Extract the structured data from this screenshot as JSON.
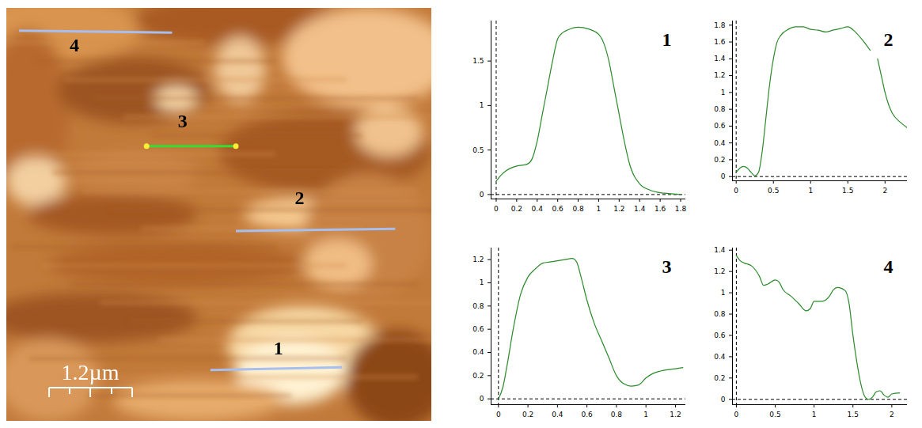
{
  "image": {
    "profile_labels": [
      "1",
      "2",
      "3",
      "4"
    ],
    "scale_bar": "1.2µm"
  },
  "chart_data": [
    {
      "type": "line",
      "title": "1",
      "color": "#2a8a2a",
      "x": [
        0,
        0.05,
        0.1,
        0.2,
        0.3,
        0.35,
        0.4,
        0.45,
        0.5,
        0.55,
        0.6,
        0.65,
        0.7,
        0.8,
        0.9,
        1.0,
        1.05,
        1.1,
        1.15,
        1.2,
        1.25,
        1.3,
        1.4,
        1.5,
        1.6,
        1.7,
        1.8
      ],
      "values": [
        0.15,
        0.22,
        0.27,
        0.32,
        0.34,
        0.4,
        0.6,
        0.9,
        1.2,
        1.5,
        1.75,
        1.82,
        1.85,
        1.88,
        1.86,
        1.8,
        1.7,
        1.5,
        1.2,
        0.9,
        0.6,
        0.35,
        0.12,
        0.05,
        0.02,
        0.01,
        0.0
      ],
      "xlim": [
        -0.05,
        1.85
      ],
      "ylim": [
        -0.05,
        1.95
      ],
      "xticks": [
        0,
        0.2,
        0.4,
        0.6,
        0.8,
        1,
        1.2,
        1.4,
        1.6,
        1.8
      ],
      "yticks": [
        0,
        0.5,
        1,
        1.5
      ]
    },
    {
      "type": "line",
      "title": "2",
      "color": "#2a8a2a",
      "x": [
        0,
        0.05,
        0.1,
        0.15,
        0.2,
        0.25,
        0.3,
        0.35,
        0.4,
        0.45,
        0.5,
        0.55,
        0.6,
        0.7,
        0.8,
        0.9,
        1.0,
        1.1,
        1.2,
        1.3,
        1.4,
        1.5,
        1.6,
        1.7,
        1.8,
        1.85,
        1.9,
        1.95,
        2.0,
        2.05,
        2.1,
        2.2,
        2.3
      ],
      "values": [
        0.05,
        0.1,
        0.12,
        0.1,
        0.05,
        0.01,
        0.05,
        0.3,
        0.7,
        1.1,
        1.4,
        1.6,
        1.68,
        1.75,
        1.78,
        1.78,
        1.75,
        1.74,
        1.72,
        1.74,
        1.76,
        1.78,
        1.72,
        1.62,
        1.5,
        null,
        1.4,
        1.2,
        1.0,
        0.85,
        0.75,
        0.65,
        0.58
      ],
      "xlim": [
        -0.05,
        2.3
      ],
      "ylim": [
        -0.05,
        1.85
      ],
      "xticks": [
        0,
        0.5,
        1,
        1.5,
        2
      ],
      "yticks": [
        0,
        0.2,
        0.4,
        0.6,
        0.8,
        1,
        1.2,
        1.4,
        1.6,
        1.8
      ]
    },
    {
      "type": "line",
      "title": "3",
      "color": "#2a8a2a",
      "x": [
        0,
        0.03,
        0.06,
        0.1,
        0.15,
        0.2,
        0.25,
        0.3,
        0.35,
        0.4,
        0.45,
        0.5,
        0.53,
        0.56,
        0.6,
        0.65,
        0.7,
        0.75,
        0.8,
        0.85,
        0.9,
        0.95,
        1.0,
        1.05,
        1.1,
        1.2,
        1.25
      ],
      "values": [
        0.0,
        0.1,
        0.3,
        0.6,
        0.9,
        1.05,
        1.12,
        1.17,
        1.18,
        1.19,
        1.2,
        1.21,
        1.18,
        1.05,
        0.85,
        0.65,
        0.5,
        0.35,
        0.2,
        0.13,
        0.11,
        0.12,
        0.18,
        0.22,
        0.24,
        0.26,
        0.27
      ],
      "xlim": [
        -0.05,
        1.27
      ],
      "ylim": [
        -0.05,
        1.3
      ],
      "xticks": [
        0,
        0.2,
        0.4,
        0.6,
        0.8,
        1,
        1.2
      ],
      "yticks": [
        0,
        0.2,
        0.4,
        0.6,
        0.8,
        1,
        1.2
      ]
    },
    {
      "type": "line",
      "title": "4",
      "color": "#2a8a2a",
      "x": [
        0,
        0.05,
        0.1,
        0.2,
        0.3,
        0.35,
        0.4,
        0.5,
        0.55,
        0.6,
        0.7,
        0.8,
        0.9,
        0.95,
        1.0,
        1.1,
        1.2,
        1.25,
        1.3,
        1.4,
        1.45,
        1.5,
        1.55,
        1.6,
        1.65,
        1.7,
        1.75,
        1.8,
        1.85,
        1.9,
        1.95,
        2.0,
        2.1
      ],
      "values": [
        1.35,
        1.3,
        1.28,
        1.25,
        1.15,
        1.07,
        1.08,
        1.12,
        1.1,
        1.03,
        0.97,
        0.9,
        0.83,
        0.85,
        0.92,
        0.92,
        0.97,
        1.03,
        1.05,
        1.02,
        0.9,
        0.6,
        0.35,
        0.15,
        0.03,
        0.0,
        0.02,
        0.07,
        0.08,
        0.04,
        0.02,
        0.05,
        0.06
      ],
      "xlim": [
        -0.05,
        2.2
      ],
      "ylim": [
        -0.05,
        1.42
      ],
      "xticks": [
        0,
        0.5,
        1,
        1.5,
        2
      ],
      "yticks": [
        0,
        0.2,
        0.4,
        0.6,
        0.8,
        1,
        1.2,
        1.4
      ]
    }
  ]
}
